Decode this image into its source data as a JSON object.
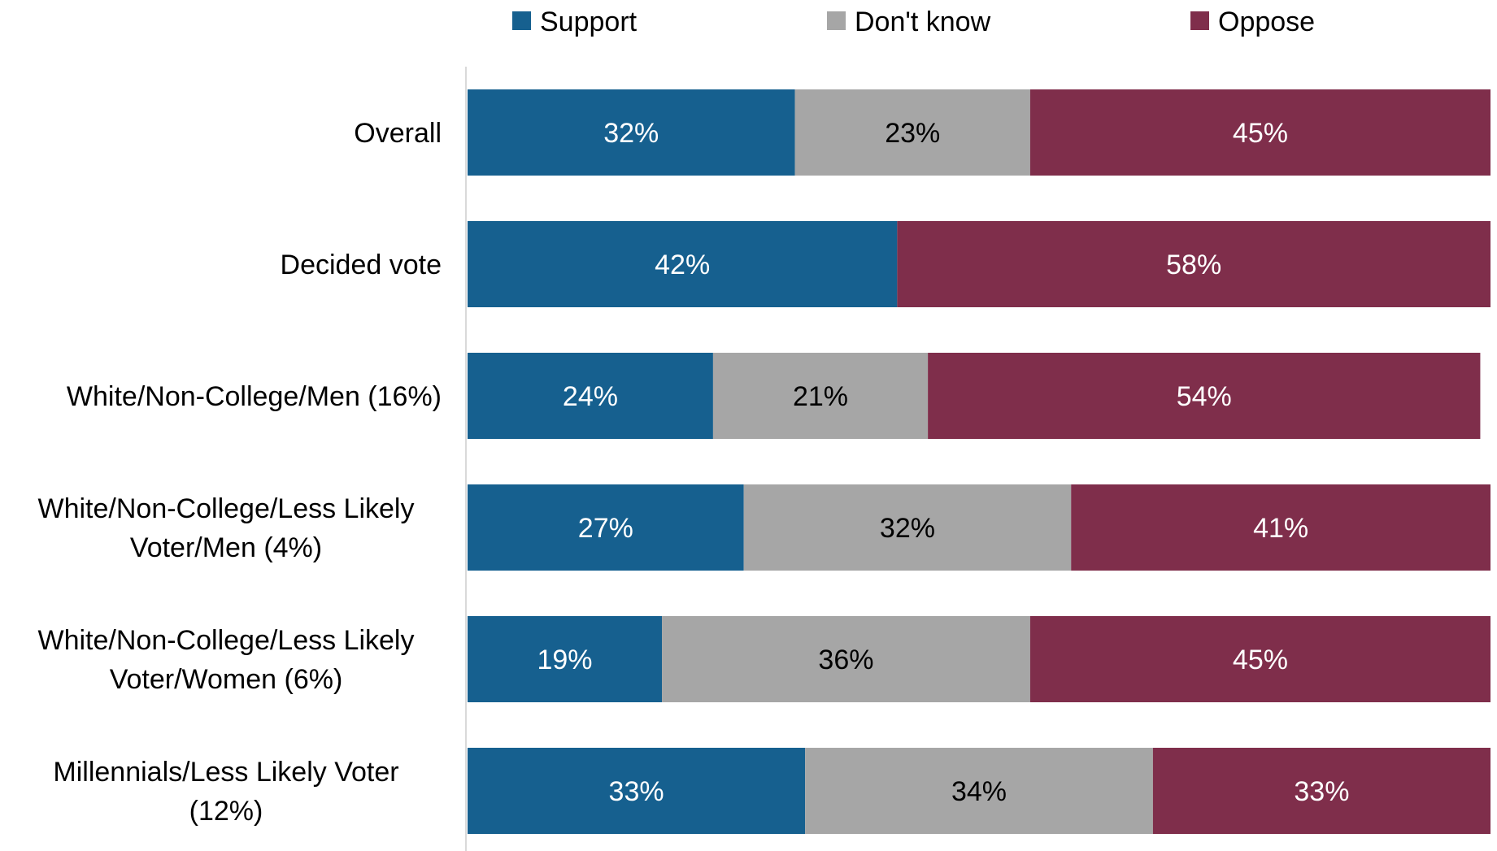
{
  "chart_data": {
    "type": "bar",
    "orientation": "horizontal",
    "stacked": true,
    "title": "",
    "xlabel": "",
    "ylabel": "",
    "xlim": [
      0,
      100
    ],
    "grid": false,
    "legend_position": "top",
    "categories": [
      [
        "Overall"
      ],
      [
        "Decided vote"
      ],
      [
        "White/Non-College/Men (16%)"
      ],
      [
        "White/Non-College/Less Likely",
        "Voter/Men (4%)"
      ],
      [
        "White/Non-College/Less Likely",
        "Voter/Women (6%)"
      ],
      [
        "Millennials/Less Likely Voter",
        "(12%)"
      ]
    ],
    "series": [
      {
        "name": "Support",
        "color": "#16608F",
        "label_color": "#FFFFFF",
        "values": [
          32,
          42,
          24,
          27,
          19,
          33
        ],
        "labels": [
          "32%",
          "42%",
          "24%",
          "27%",
          "19%",
          "33%"
        ]
      },
      {
        "name": "Don't know",
        "color": "#A6A6A6",
        "label_color": "#000000",
        "values": [
          23,
          0,
          21,
          32,
          36,
          34
        ],
        "labels": [
          "23%",
          "",
          "21%",
          "32%",
          "36%",
          "34%"
        ]
      },
      {
        "name": "Oppose",
        "color": "#7F2E4B",
        "label_color": "#FFFFFF",
        "values": [
          45,
          58,
          54,
          41,
          45,
          33
        ],
        "labels": [
          "45%",
          "58%",
          "54%",
          "41%",
          "45%",
          "33%"
        ]
      }
    ]
  }
}
